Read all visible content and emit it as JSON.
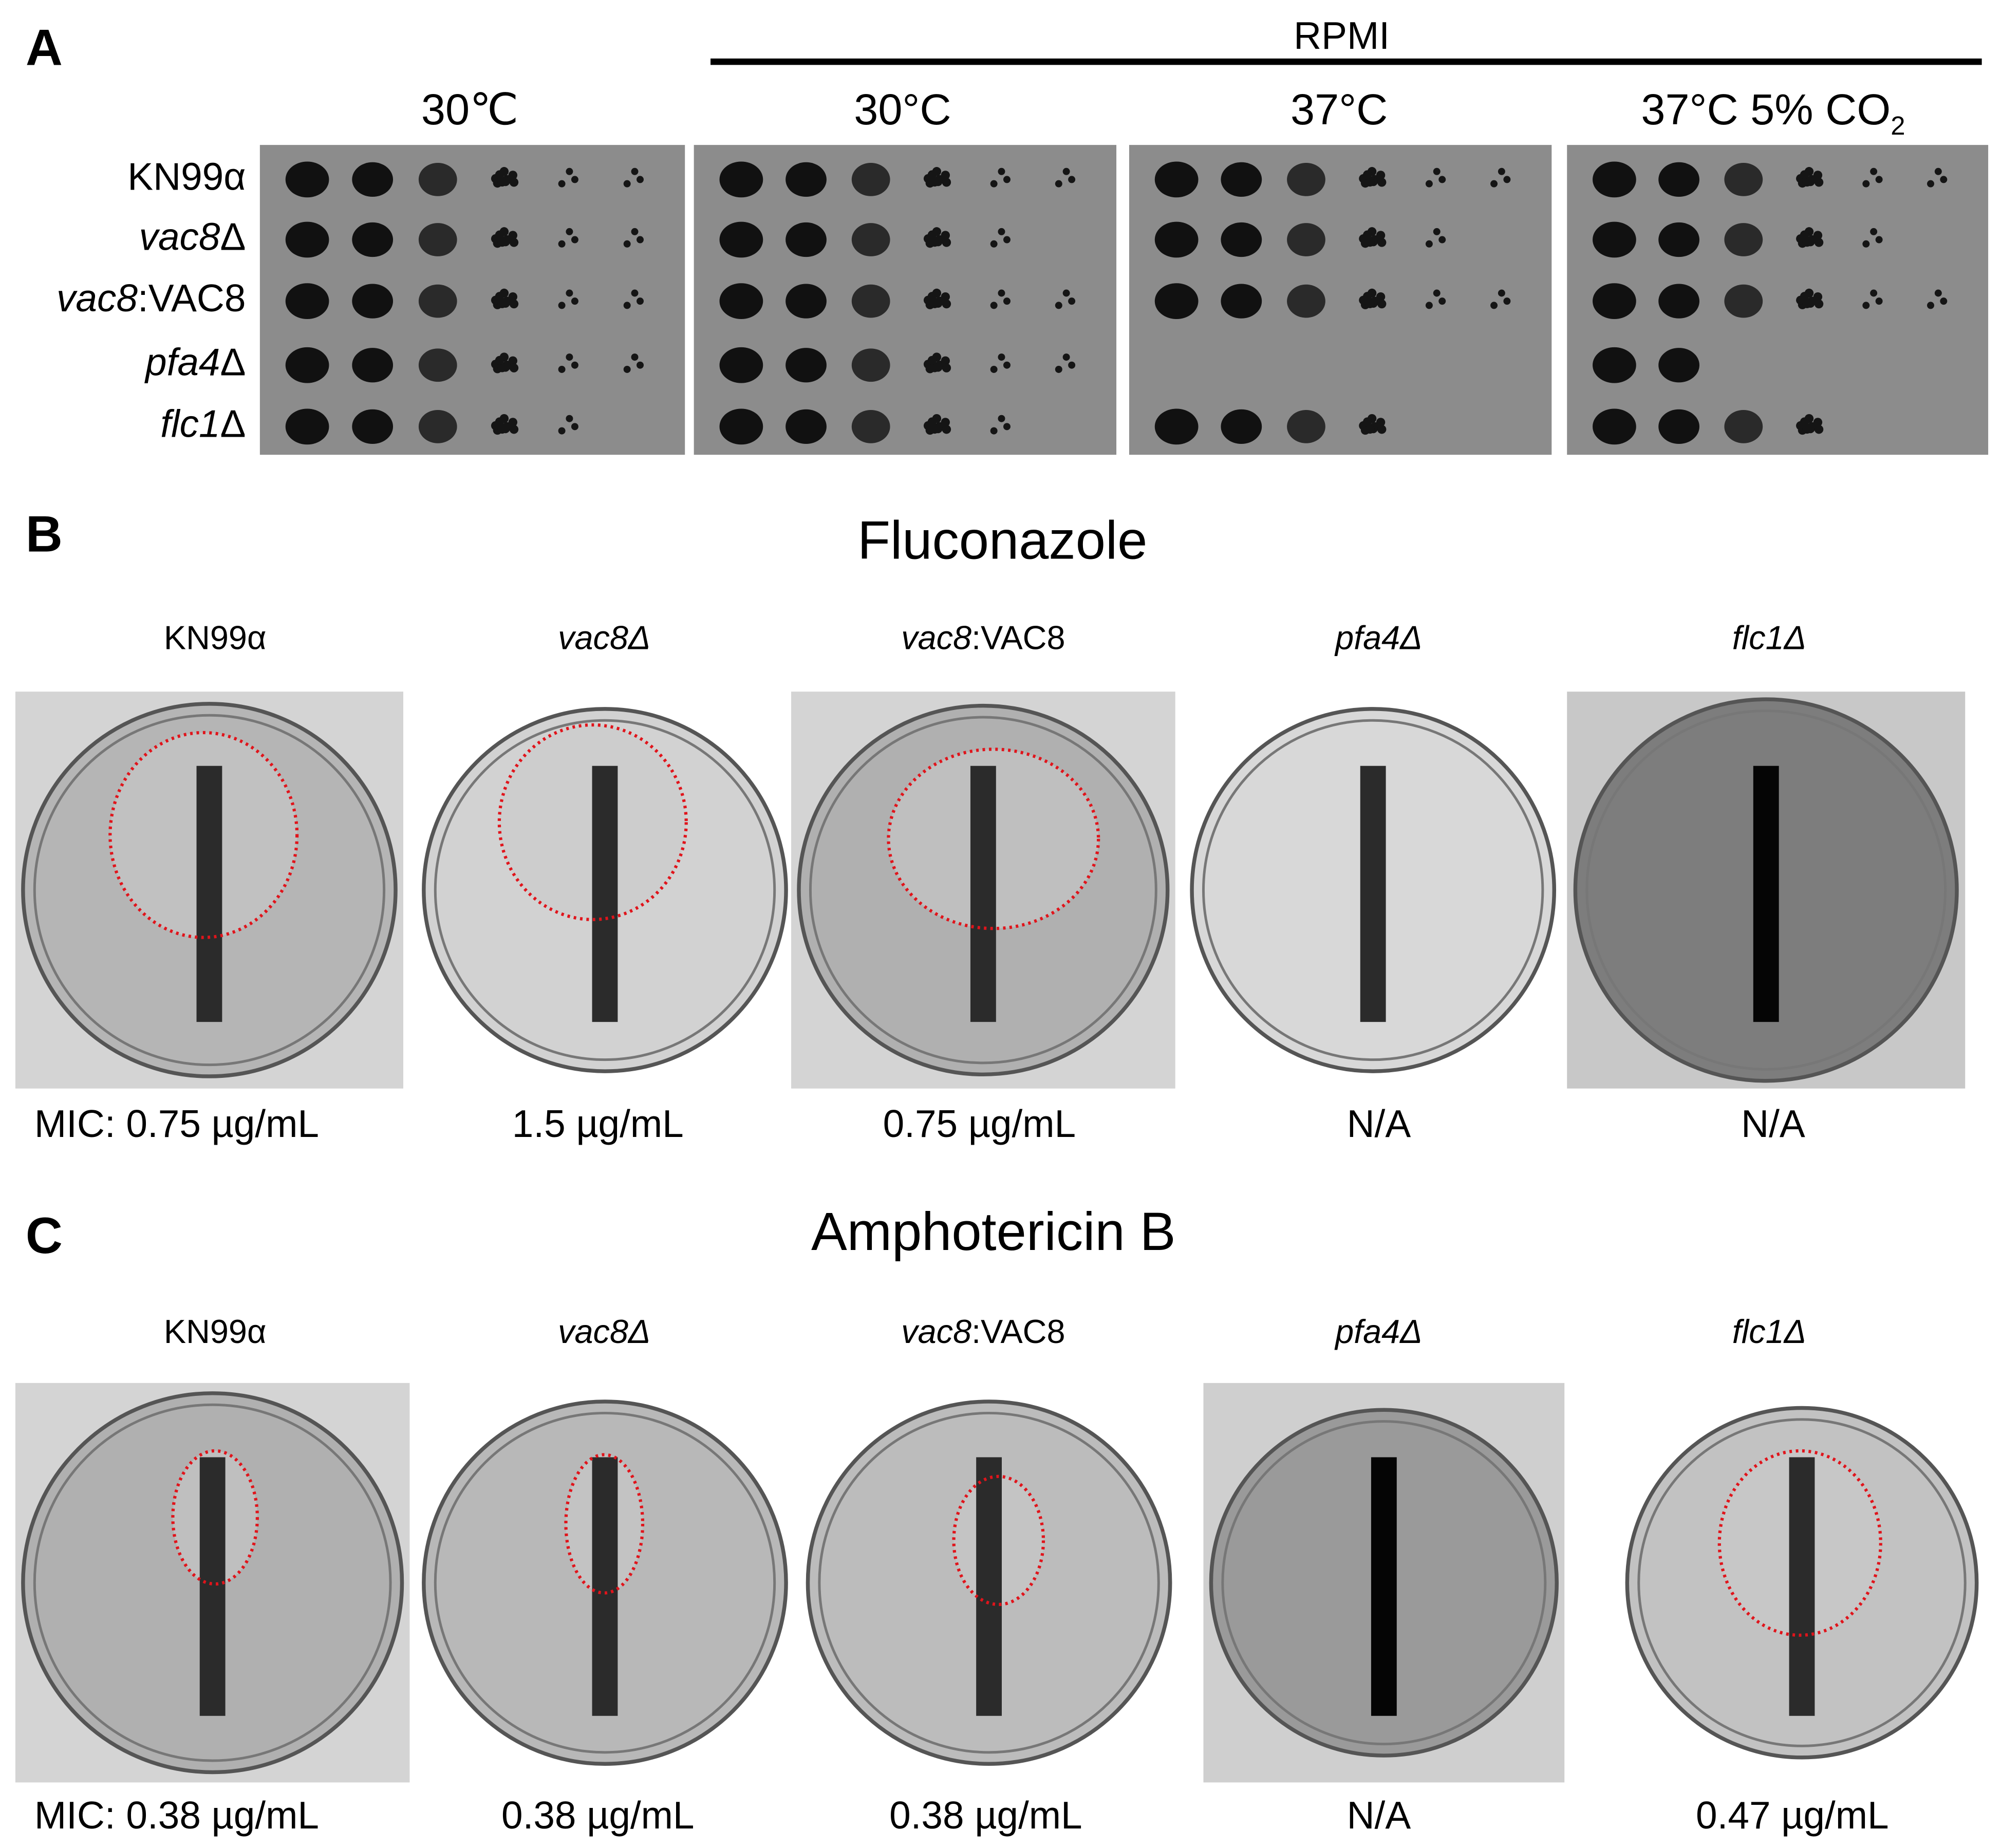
{
  "panel_a": {
    "label": "A",
    "medium": "RPMI",
    "conditions": [
      [
        {
          "text": "30℃"
        }
      ],
      [
        {
          "text": "30°C"
        }
      ],
      [
        {
          "text": "37°C"
        }
      ],
      [
        {
          "text": "37°C 5% CO"
        },
        {
          "text": "2",
          "sub": true
        }
      ]
    ],
    "strains": [
      [
        {
          "text": "KN99α"
        }
      ],
      [
        {
          "text": "vac8",
          "italic": true
        },
        {
          "text": "Δ"
        }
      ],
      [
        {
          "text": "vac8",
          "italic": true
        },
        {
          "text": ":VAC8"
        }
      ],
      [
        {
          "text": "pfa4",
          "italic": true
        },
        {
          "text": "Δ"
        }
      ],
      [
        {
          "text": "flc1",
          "italic": true
        },
        {
          "text": "Δ"
        }
      ]
    ]
  },
  "panel_b": {
    "label": "B",
    "title": "Fluconazole",
    "strains": [
      [
        {
          "text": "KN99α"
        }
      ],
      [
        {
          "text": "vac8Δ",
          "italic": true
        }
      ],
      [
        {
          "text": "vac8",
          "italic": true
        },
        {
          "text": ":VAC8"
        }
      ],
      [
        {
          "text": "pfa4Δ",
          "italic": true
        }
      ],
      [
        {
          "text": "flc1Δ",
          "italic": true
        }
      ]
    ],
    "mic": [
      "MIC: 0.75 µg/mL",
      "1.5 µg/mL",
      "0.75 µg/mL",
      "N/A",
      "N/A"
    ]
  },
  "panel_c": {
    "label": "C",
    "title": "Amphotericin B",
    "strains": [
      [
        {
          "text": "KN99α"
        }
      ],
      [
        {
          "text": "vac8Δ",
          "italic": true
        }
      ],
      [
        {
          "text": "vac8",
          "italic": true
        },
        {
          "text": ":VAC8"
        }
      ],
      [
        {
          "text": "pfa4Δ",
          "italic": true
        }
      ],
      [
        {
          "text": "flc1Δ",
          "italic": true
        }
      ]
    ],
    "mic": [
      "MIC: 0.38 µg/mL",
      "0.38 µg/mL",
      "0.38 µg/mL",
      "N/A",
      "0.47 µg/mL"
    ]
  }
}
